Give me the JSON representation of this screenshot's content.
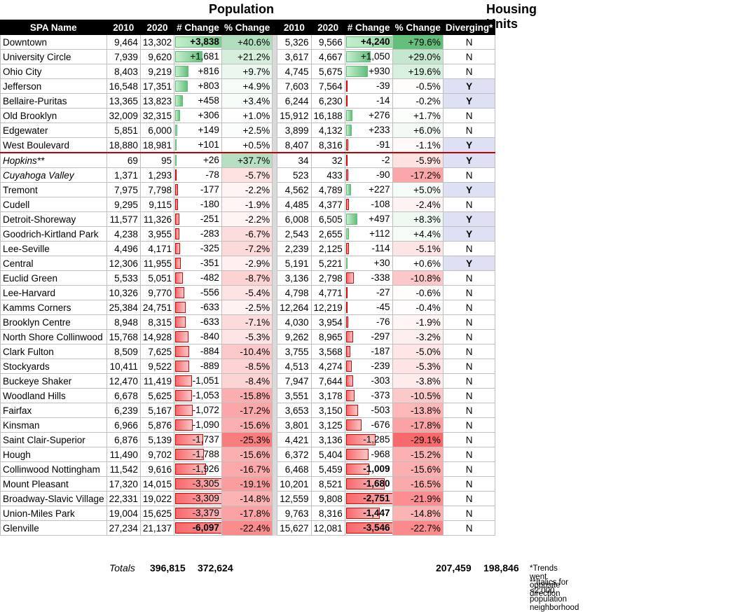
{
  "titles": {
    "population": "Population",
    "housing": "Housing Units"
  },
  "headers": {
    "name": "SPA Name",
    "p2010": "2010",
    "p2020": "2020",
    "pchg": "# Change",
    "ppct": "% Change",
    "h2010": "2010",
    "h2020": "2020",
    "hchg": "# Change",
    "hpct": "% Change",
    "div": "Diverging*"
  },
  "rows": [
    {
      "name": "Downtown",
      "p2010": "9,464",
      "p2020": "13,302",
      "pchg": "+3,838",
      "pchgv": 3838,
      "ppct": "+40.6%",
      "ppctv": 40.6,
      "h2010": "5,326",
      "h2020": "9,566",
      "hchg": "+4,240",
      "hchgv": 4240,
      "hpct": "+79.6%",
      "hpctv": 79.6,
      "div": "N"
    },
    {
      "name": "University Circle",
      "p2010": "7,939",
      "p2020": "9,620",
      "pchg": "+1,681",
      "pchgv": 1681,
      "ppct": "+21.2%",
      "ppctv": 21.2,
      "h2010": "3,617",
      "h2020": "4,667",
      "hchg": "+1,050",
      "hchgv": 1050,
      "hpct": "+29.0%",
      "hpctv": 29.0,
      "div": "N"
    },
    {
      "name": "Ohio City",
      "p2010": "8,403",
      "p2020": "9,219",
      "pchg": "+816",
      "pchgv": 816,
      "ppct": "+9.7%",
      "ppctv": 9.7,
      "h2010": "4,745",
      "h2020": "5,675",
      "hchg": "+930",
      "hchgv": 930,
      "hpct": "+19.6%",
      "hpctv": 19.6,
      "div": "N"
    },
    {
      "name": "Jefferson",
      "p2010": "16,548",
      "p2020": "17,351",
      "pchg": "+803",
      "pchgv": 803,
      "ppct": "+4.9%",
      "ppctv": 4.9,
      "h2010": "7,603",
      "h2020": "7,564",
      "hchg": "-39",
      "hchgv": -39,
      "hpct": "-0.5%",
      "hpctv": -0.5,
      "div": "Y"
    },
    {
      "name": "Bellaire-Puritas",
      "p2010": "13,365",
      "p2020": "13,823",
      "pchg": "+458",
      "pchgv": 458,
      "ppct": "+3.4%",
      "ppctv": 3.4,
      "h2010": "6,244",
      "h2020": "6,230",
      "hchg": "-14",
      "hchgv": -14,
      "hpct": "-0.2%",
      "hpctv": -0.2,
      "div": "Y"
    },
    {
      "name": "Old Brooklyn",
      "p2010": "32,009",
      "p2020": "32,315",
      "pchg": "+306",
      "pchgv": 306,
      "ppct": "+1.0%",
      "ppctv": 1.0,
      "h2010": "15,912",
      "h2020": "16,188",
      "hchg": "+276",
      "hchgv": 276,
      "hpct": "+1.7%",
      "hpctv": 1.7,
      "div": "N"
    },
    {
      "name": "Edgewater",
      "p2010": "5,851",
      "p2020": "6,000",
      "pchg": "+149",
      "pchgv": 149,
      "ppct": "+2.5%",
      "ppctv": 2.5,
      "h2010": "3,899",
      "h2020": "4,132",
      "hchg": "+233",
      "hchgv": 233,
      "hpct": "+6.0%",
      "hpctv": 6.0,
      "div": "N"
    },
    {
      "name": "West Boulevard",
      "p2010": "18,880",
      "p2020": "18,981",
      "pchg": "+101",
      "pchgv": 101,
      "ppct": "+0.5%",
      "ppctv": 0.5,
      "h2010": "8,407",
      "h2020": "8,316",
      "hchg": "-91",
      "hchgv": -91,
      "hpct": "-1.1%",
      "hpctv": -1.1,
      "div": "Y"
    },
    {
      "name": "Hopkins**",
      "p2010": "69",
      "p2020": "95",
      "pchg": "+26",
      "pchgv": 26,
      "ppct": "+37.7%",
      "ppctv": 37.7,
      "h2010": "34",
      "h2020": "32",
      "hchg": "-2",
      "hchgv": -2,
      "hpct": "-5.9%",
      "hpctv": -5.9,
      "div": "Y",
      "italic": true
    },
    {
      "name": "Cuyahoga Valley",
      "p2010": "1,371",
      "p2020": "1,293",
      "pchg": "-78",
      "pchgv": -78,
      "ppct": "-5.7%",
      "ppctv": -5.7,
      "h2010": "523",
      "h2020": "433",
      "hchg": "-90",
      "hchgv": -90,
      "hpct": "-17.2%",
      "hpctv": -17.2,
      "div": "N",
      "italic": true
    },
    {
      "name": "Tremont",
      "p2010": "7,975",
      "p2020": "7,798",
      "pchg": "-177",
      "pchgv": -177,
      "ppct": "-2.2%",
      "ppctv": -2.2,
      "h2010": "4,562",
      "h2020": "4,789",
      "hchg": "+227",
      "hchgv": 227,
      "hpct": "+5.0%",
      "hpctv": 5.0,
      "div": "Y"
    },
    {
      "name": "Cudell",
      "p2010": "9,295",
      "p2020": "9,115",
      "pchg": "-180",
      "pchgv": -180,
      "ppct": "-1.9%",
      "ppctv": -1.9,
      "h2010": "4,485",
      "h2020": "4,377",
      "hchg": "-108",
      "hchgv": -108,
      "hpct": "-2.4%",
      "hpctv": -2.4,
      "div": "N"
    },
    {
      "name": "Detroit-Shoreway",
      "p2010": "11,577",
      "p2020": "11,326",
      "pchg": "-251",
      "pchgv": -251,
      "ppct": "-2.2%",
      "ppctv": -2.2,
      "h2010": "6,008",
      "h2020": "6,505",
      "hchg": "+497",
      "hchgv": 497,
      "hpct": "+8.3%",
      "hpctv": 8.3,
      "div": "Y"
    },
    {
      "name": "Goodrich-Kirtland Park",
      "p2010": "4,238",
      "p2020": "3,955",
      "pchg": "-283",
      "pchgv": -283,
      "ppct": "-6.7%",
      "ppctv": -6.7,
      "h2010": "2,543",
      "h2020": "2,655",
      "hchg": "+112",
      "hchgv": 112,
      "hpct": "+4.4%",
      "hpctv": 4.4,
      "div": "Y"
    },
    {
      "name": "Lee-Seville",
      "p2010": "4,496",
      "p2020": "4,171",
      "pchg": "-325",
      "pchgv": -325,
      "ppct": "-7.2%",
      "ppctv": -7.2,
      "h2010": "2,239",
      "h2020": "2,125",
      "hchg": "-114",
      "hchgv": -114,
      "hpct": "-5.1%",
      "hpctv": -5.1,
      "div": "N"
    },
    {
      "name": "Central",
      "p2010": "12,306",
      "p2020": "11,955",
      "pchg": "-351",
      "pchgv": -351,
      "ppct": "-2.9%",
      "ppctv": -2.9,
      "h2010": "5,191",
      "h2020": "5,221",
      "hchg": "+30",
      "hchgv": 30,
      "hpct": "+0.6%",
      "hpctv": 0.6,
      "div": "Y"
    },
    {
      "name": "Euclid Green",
      "p2010": "5,533",
      "p2020": "5,051",
      "pchg": "-482",
      "pchgv": -482,
      "ppct": "-8.7%",
      "ppctv": -8.7,
      "h2010": "3,136",
      "h2020": "2,798",
      "hchg": "-338",
      "hchgv": -338,
      "hpct": "-10.8%",
      "hpctv": -10.8,
      "div": "N"
    },
    {
      "name": "Lee-Harvard",
      "p2010": "10,326",
      "p2020": "9,770",
      "pchg": "-556",
      "pchgv": -556,
      "ppct": "-5.4%",
      "ppctv": -5.4,
      "h2010": "4,798",
      "h2020": "4,771",
      "hchg": "-27",
      "hchgv": -27,
      "hpct": "-0.6%",
      "hpctv": -0.6,
      "div": "N"
    },
    {
      "name": "Kamms Corners",
      "p2010": "25,384",
      "p2020": "24,751",
      "pchg": "-633",
      "pchgv": -633,
      "ppct": "-2.5%",
      "ppctv": -2.5,
      "h2010": "12,264",
      "h2020": "12,219",
      "hchg": "-45",
      "hchgv": -45,
      "hpct": "-0.4%",
      "hpctv": -0.4,
      "div": "N"
    },
    {
      "name": "Brooklyn Centre",
      "p2010": "8,948",
      "p2020": "8,315",
      "pchg": "-633",
      "pchgv": -633,
      "ppct": "-7.1%",
      "ppctv": -7.1,
      "h2010": "4,030",
      "h2020": "3,954",
      "hchg": "-76",
      "hchgv": -76,
      "hpct": "-1.9%",
      "hpctv": -1.9,
      "div": "N"
    },
    {
      "name": "North Shore Collinwood",
      "p2010": "15,768",
      "p2020": "14,928",
      "pchg": "-840",
      "pchgv": -840,
      "ppct": "-5.3%",
      "ppctv": -5.3,
      "h2010": "9,262",
      "h2020": "8,965",
      "hchg": "-297",
      "hchgv": -297,
      "hpct": "-3.2%",
      "hpctv": -3.2,
      "div": "N"
    },
    {
      "name": "Clark Fulton",
      "p2010": "8,509",
      "p2020": "7,625",
      "pchg": "-884",
      "pchgv": -884,
      "ppct": "-10.4%",
      "ppctv": -10.4,
      "h2010": "3,755",
      "h2020": "3,568",
      "hchg": "-187",
      "hchgv": -187,
      "hpct": "-5.0%",
      "hpctv": -5.0,
      "div": "N"
    },
    {
      "name": "Stockyards",
      "p2010": "10,411",
      "p2020": "9,522",
      "pchg": "-889",
      "pchgv": -889,
      "ppct": "-8.5%",
      "ppctv": -8.5,
      "h2010": "4,513",
      "h2020": "4,274",
      "hchg": "-239",
      "hchgv": -239,
      "hpct": "-5.3%",
      "hpctv": -5.3,
      "div": "N"
    },
    {
      "name": "Buckeye Shaker",
      "p2010": "12,470",
      "p2020": "11,419",
      "pchg": "-1,051",
      "pchgv": -1051,
      "ppct": "-8.4%",
      "ppctv": -8.4,
      "h2010": "7,947",
      "h2020": "7,644",
      "hchg": "-303",
      "hchgv": -303,
      "hpct": "-3.8%",
      "hpctv": -3.8,
      "div": "N"
    },
    {
      "name": "Woodland Hills",
      "p2010": "6,678",
      "p2020": "5,625",
      "pchg": "-1,053",
      "pchgv": -1053,
      "ppct": "-15.8%",
      "ppctv": -15.8,
      "h2010": "3,551",
      "h2020": "3,178",
      "hchg": "-373",
      "hchgv": -373,
      "hpct": "-10.5%",
      "hpctv": -10.5,
      "div": "N"
    },
    {
      "name": "Fairfax",
      "p2010": "6,239",
      "p2020": "5,167",
      "pchg": "-1,072",
      "pchgv": -1072,
      "ppct": "-17.2%",
      "ppctv": -17.2,
      "h2010": "3,653",
      "h2020": "3,150",
      "hchg": "-503",
      "hchgv": -503,
      "hpct": "-13.8%",
      "hpctv": -13.8,
      "div": "N"
    },
    {
      "name": "Kinsman",
      "p2010": "6,966",
      "p2020": "5,876",
      "pchg": "-1,090",
      "pchgv": -1090,
      "ppct": "-15.6%",
      "ppctv": -15.6,
      "h2010": "3,801",
      "h2020": "3,125",
      "hchg": "-676",
      "hchgv": -676,
      "hpct": "-17.8%",
      "hpctv": -17.8,
      "div": "N"
    },
    {
      "name": "Saint Clair-Superior",
      "p2010": "6,876",
      "p2020": "5,139",
      "pchg": "-1,737",
      "pchgv": -1737,
      "ppct": "-25.3%",
      "ppctv": -25.3,
      "h2010": "4,421",
      "h2020": "3,136",
      "hchg": "-1,285",
      "hchgv": -1285,
      "hpct": "-29.1%",
      "hpctv": -29.1,
      "div": "N"
    },
    {
      "name": "Hough",
      "p2010": "11,490",
      "p2020": "9,702",
      "pchg": "-1,788",
      "pchgv": -1788,
      "ppct": "-15.6%",
      "ppctv": -15.6,
      "h2010": "6,372",
      "h2020": "5,404",
      "hchg": "-968",
      "hchgv": -968,
      "hpct": "-15.2%",
      "hpctv": -15.2,
      "div": "N"
    },
    {
      "name": "Collinwood Nottingham",
      "p2010": "11,542",
      "p2020": "9,616",
      "pchg": "-1,926",
      "pchgv": -1926,
      "ppct": "-16.7%",
      "ppctv": -16.7,
      "h2010": "6,468",
      "h2020": "5,459",
      "hchg": "-1,009",
      "hchgv": -1009,
      "hpct": "-15.6%",
      "hpctv": -15.6,
      "div": "N",
      "hbold": true
    },
    {
      "name": "Mount Pleasant",
      "p2010": "17,320",
      "p2020": "14,015",
      "pchg": "-3,305",
      "pchgv": -3305,
      "ppct": "-19.1%",
      "ppctv": -19.1,
      "h2010": "10,201",
      "h2020": "8,521",
      "hchg": "-1,680",
      "hchgv": -1680,
      "hpct": "-16.5%",
      "hpctv": -16.5,
      "div": "N",
      "hbold": true
    },
    {
      "name": "Broadway-Slavic Village",
      "p2010": "22,331",
      "p2020": "19,022",
      "pchg": "-3,309",
      "pchgv": -3309,
      "ppct": "-14.8%",
      "ppctv": -14.8,
      "h2010": "12,559",
      "h2020": "9,808",
      "hchg": "-2,751",
      "hchgv": -2751,
      "hpct": "-21.9%",
      "hpctv": -21.9,
      "div": "N",
      "hbold": true
    },
    {
      "name": "Union-Miles Park",
      "p2010": "19,004",
      "p2020": "15,625",
      "pchg": "-3,379",
      "pchgv": -3379,
      "ppct": "-17.8%",
      "ppctv": -17.8,
      "h2010": "9,763",
      "h2020": "8,316",
      "hchg": "-1,447",
      "hchgv": -1447,
      "hpct": "-14.8%",
      "hpctv": -14.8,
      "div": "N",
      "hbold": true
    },
    {
      "name": "Glenville",
      "p2010": "27,234",
      "p2020": "21,137",
      "pchg": "-6,097",
      "pchgv": -6097,
      "ppct": "-22.4%",
      "ppctv": -22.4,
      "h2010": "15,627",
      "h2020": "12,081",
      "hchg": "-3,546",
      "hchgv": -3546,
      "hpct": "-22.7%",
      "hpctv": -22.7,
      "div": "N",
      "pbold": true,
      "hbold": true
    }
  ],
  "totals": {
    "label": "Totals",
    "p2010": "396,815",
    "p2020": "372,624",
    "h2010": "207,459",
    "h2020": "198,846"
  },
  "notes": {
    "diverging": "*Trends went opposite direction",
    "italics": "**Italics for <2,000 population neighborhood"
  }
}
